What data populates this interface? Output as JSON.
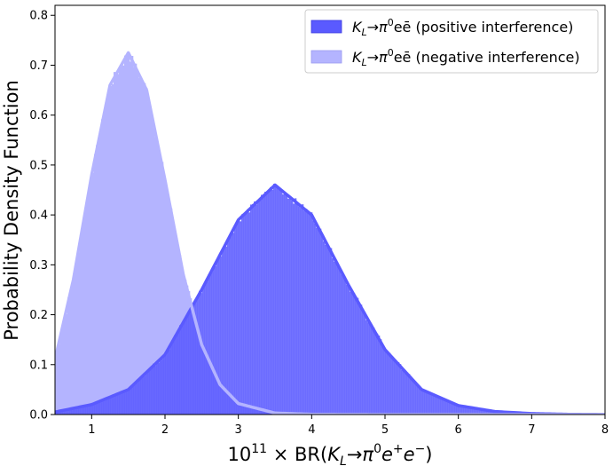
{
  "chart_data": {
    "type": "area",
    "xlabel_main": "BR(",
    "xlabel_prefix_base": "10",
    "xlabel_prefix_exp": "11",
    "xlabel_times": " × ",
    "xlabel_k": "K",
    "xlabel_k_sub": "L",
    "xlabel_arrow": "→π",
    "xlabel_pi_sup": "0",
    "xlabel_e1": "e",
    "xlabel_e1_sup": "+",
    "xlabel_e2": "e",
    "xlabel_e2_sup": "−",
    "xlabel_close": ")",
    "ylabel": "Probability Density Function",
    "xlim": [
      0.5,
      8
    ],
    "ylim": [
      0,
      0.82
    ],
    "xticks": [
      "1",
      "2",
      "3",
      "4",
      "5",
      "6",
      "7",
      "8"
    ],
    "yticks": [
      "0.0",
      "0.1",
      "0.2",
      "0.3",
      "0.4",
      "0.5",
      "0.6",
      "0.7",
      "0.8"
    ],
    "legend_position": "top-right",
    "series": [
      {
        "name": "positive interference",
        "legend_k": "K",
        "legend_k_sub": "L",
        "legend_mid": "→π",
        "legend_pi_sup": "0",
        "legend_tail": "eē (positive interference)",
        "fill_color": "#5a5aff",
        "line_color": "#5a5aff",
        "peak_x": 3.42,
        "peak_y": 0.46,
        "x": [
          0.5,
          1.0,
          1.5,
          2.0,
          2.5,
          3.0,
          3.5,
          4.0,
          4.5,
          5.0,
          5.5,
          6.0,
          6.5,
          7.0,
          7.5,
          8.0
        ],
        "y": [
          0.005,
          0.02,
          0.05,
          0.12,
          0.25,
          0.39,
          0.46,
          0.4,
          0.26,
          0.13,
          0.05,
          0.018,
          0.006,
          0.002,
          0.0005,
          0.0
        ]
      },
      {
        "name": "negative interference",
        "legend_k": "K",
        "legend_k_sub": "L",
        "legend_mid": "→π",
        "legend_pi_sup": "0",
        "legend_tail": "eē (negative interference)",
        "fill_color": "#b4b4ff",
        "line_color": "#b4b4ff",
        "peak_x": 1.55,
        "peak_y": 0.725,
        "x": [
          0.5,
          0.75,
          1.0,
          1.25,
          1.5,
          1.75,
          2.0,
          2.25,
          2.5,
          2.75,
          3.0,
          3.5,
          4.0,
          5.0,
          8.0
        ],
        "y": [
          0.11,
          0.27,
          0.48,
          0.66,
          0.725,
          0.65,
          0.47,
          0.28,
          0.14,
          0.06,
          0.022,
          0.003,
          0.0005,
          0.0,
          0.0
        ]
      }
    ]
  }
}
